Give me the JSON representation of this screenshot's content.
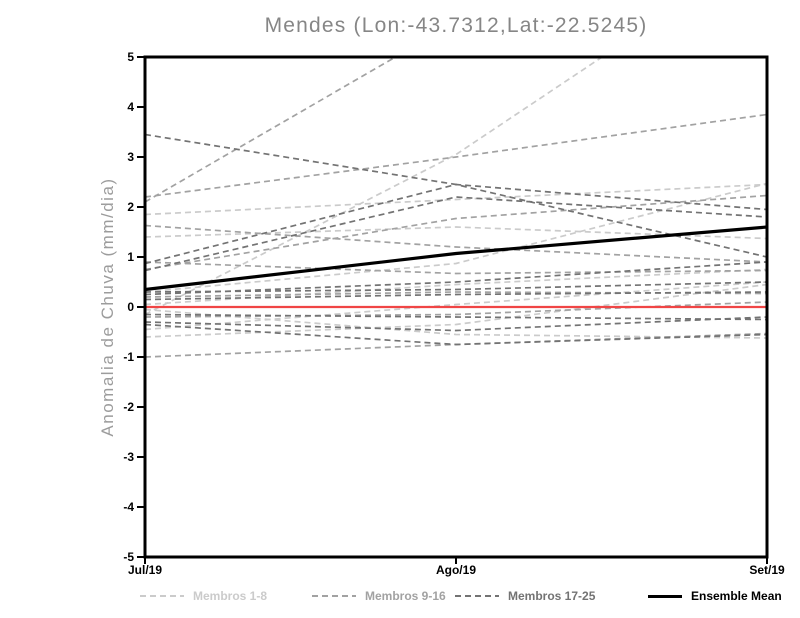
{
  "chart_data": {
    "type": "line",
    "title": "Mendes (Lon:-43.7312,Lat:-22.5245)",
    "ylabel": "Anomalia de Chuva (mm/dia)",
    "x_categories": [
      "Jul/19",
      "Ago/19",
      "Set/19"
    ],
    "ylim": [
      -5,
      5
    ],
    "yticks": [
      "5",
      "4",
      "3",
      "2",
      "1",
      "0",
      "-1",
      "-2",
      "-3",
      "-4",
      "-5"
    ],
    "ytick_values": [
      5,
      4,
      3,
      2,
      1,
      0,
      -1,
      -2,
      -3,
      -4,
      -5
    ],
    "grid": false,
    "legend_position": "bottom",
    "groups": {
      "membros-1-8": {
        "color": "#cbcbcb",
        "dashed": true
      },
      "membros-9-16": {
        "color": "#a2a2a2",
        "dashed": true
      },
      "membros-17-25": {
        "color": "#737373",
        "dashed": true
      },
      "reference": {
        "color": "#f04545",
        "dashed": false
      },
      "mean": {
        "color": "#000000",
        "dashed": false
      }
    },
    "legend": [
      {
        "label": "Membros 1-8",
        "group": "membros-1-8"
      },
      {
        "label": "Membros 9-16",
        "group": "membros-9-16"
      },
      {
        "label": "Membros 17-25",
        "group": "membros-17-25"
      },
      {
        "label": "Ensemble Mean",
        "group": "mean"
      }
    ],
    "series": [
      {
        "name": "member-01",
        "group": "membros-1-8",
        "values": [
          -0.15,
          3.05,
          7.2
        ]
      },
      {
        "name": "member-02",
        "group": "membros-1-8",
        "values": [
          1.85,
          2.15,
          2.45
        ]
      },
      {
        "name": "member-03",
        "group": "membros-1-8",
        "values": [
          1.4,
          1.6,
          1.37
        ]
      },
      {
        "name": "member-04",
        "group": "membros-1-8",
        "values": [
          0.05,
          0.45,
          0.75
        ]
      },
      {
        "name": "member-05",
        "group": "membros-1-8",
        "values": [
          -0.45,
          0.05,
          0.5
        ]
      },
      {
        "name": "member-06",
        "group": "membros-1-8",
        "values": [
          -0.6,
          -0.35,
          0.45
        ]
      },
      {
        "name": "member-07",
        "group": "membros-1-8",
        "values": [
          0.3,
          0.87,
          2.47
        ]
      },
      {
        "name": "member-08",
        "group": "membros-1-8",
        "values": [
          -0.05,
          -0.55,
          -0.62
        ]
      },
      {
        "name": "member-09",
        "group": "membros-9-16",
        "values": [
          2.1,
          5.7,
          6.2
        ]
      },
      {
        "name": "member-10",
        "group": "membros-9-16",
        "values": [
          2.2,
          3.0,
          3.85
        ]
      },
      {
        "name": "member-11",
        "group": "membros-9-16",
        "values": [
          1.63,
          1.2,
          0.9
        ]
      },
      {
        "name": "member-12",
        "group": "membros-9-16",
        "values": [
          0.75,
          1.77,
          2.23
        ]
      },
      {
        "name": "member-13",
        "group": "membros-9-16",
        "values": [
          0.9,
          0.67,
          0.73
        ]
      },
      {
        "name": "member-14",
        "group": "membros-9-16",
        "values": [
          0.2,
          0.3,
          0.27
        ]
      },
      {
        "name": "member-15",
        "group": "membros-9-16",
        "values": [
          -0.2,
          -0.15,
          0.1
        ]
      },
      {
        "name": "member-16",
        "group": "membros-9-16",
        "values": [
          -1.0,
          -0.75,
          -0.53
        ]
      },
      {
        "name": "member-17",
        "group": "membros-17-25",
        "values": [
          3.45,
          2.45,
          1.0
        ]
      },
      {
        "name": "member-18",
        "group": "membros-17-25",
        "values": [
          0.87,
          2.45,
          1.95
        ]
      },
      {
        "name": "member-19",
        "group": "membros-17-25",
        "values": [
          0.73,
          2.2,
          1.8
        ]
      },
      {
        "name": "member-20",
        "group": "membros-17-25",
        "values": [
          0.25,
          0.5,
          0.9
        ]
      },
      {
        "name": "member-21",
        "group": "membros-17-25",
        "values": [
          0.3,
          0.35,
          0.5
        ]
      },
      {
        "name": "member-22",
        "group": "membros-17-25",
        "values": [
          0.15,
          0.25,
          0.3
        ]
      },
      {
        "name": "member-23",
        "group": "membros-17-25",
        "values": [
          -0.15,
          -0.2,
          -0.25
        ]
      },
      {
        "name": "member-24",
        "group": "membros-17-25",
        "values": [
          -0.3,
          -0.47,
          -0.2
        ]
      },
      {
        "name": "member-25",
        "group": "membros-17-25",
        "values": [
          -0.35,
          -0.75,
          -0.55
        ]
      },
      {
        "name": "zero-reference",
        "group": "reference",
        "values": [
          0.0,
          0.0,
          0.0
        ]
      },
      {
        "name": "ensemble-mean",
        "group": "mean",
        "values": [
          0.35,
          1.07,
          1.6
        ]
      }
    ]
  }
}
